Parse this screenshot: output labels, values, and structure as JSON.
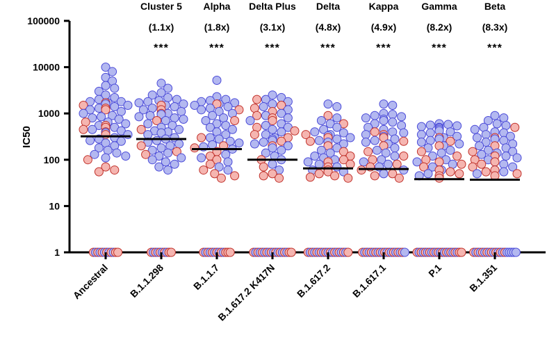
{
  "chart_data": {
    "type": "scatter",
    "subtype": "column-dot-plot",
    "yscale": "log",
    "ylim": [
      1,
      100000
    ],
    "ylabel": "IC50",
    "xlabel": "",
    "yticks": [
      1,
      10,
      100,
      1000,
      10000,
      100000
    ],
    "ytick_labels": [
      "1",
      "10",
      "100",
      "1000",
      "10000",
      "100000"
    ],
    "categories": [
      "Ancestral",
      "B.1.1.298",
      "B.1.1.7",
      "B.1.617.2 K417N",
      "B.1.617.2",
      "B.1.617.1",
      "P.1",
      "B.1.351"
    ],
    "variant_names": [
      "",
      "Cluster 5",
      "Alpha",
      "Delta Plus",
      "Delta",
      "Kappa",
      "Gamma",
      "Beta"
    ],
    "fold_changes": [
      "",
      "(1.1x)",
      "(1.8x)",
      "(3.1x)",
      "(4.8x)",
      "(4.9x)",
      "(8.2x)",
      "(8.3x)"
    ],
    "significance": [
      "",
      "***",
      "***",
      "***",
      "***",
      "***",
      "***",
      "***"
    ],
    "medians": [
      320,
      280,
      170,
      100,
      65,
      63,
      38,
      37
    ],
    "point_colors": {
      "blue": "#b3b8f0",
      "red": "#f5b5b0"
    },
    "point_stroke": {
      "blue": "#4a4ad8",
      "red": "#c0302a"
    },
    "series": [
      {
        "name": "Ancestral",
        "blue": [
          10000,
          8000,
          6000,
          5000,
          4000,
          3500,
          3000,
          2500,
          2200,
          2000,
          1800,
          1800,
          1700,
          1600,
          1500,
          1400,
          1300,
          1200,
          1100,
          1000,
          900,
          850,
          800,
          750,
          650,
          600,
          550,
          500,
          450,
          420,
          400,
          380,
          350,
          300,
          280,
          260,
          250,
          230,
          200,
          180,
          160,
          140,
          130,
          120,
          110
        ],
        "red": [
          1700,
          1500,
          1300,
          1200,
          650,
          550,
          500,
          450,
          400,
          350,
          100,
          70,
          60,
          55
        ],
        "blue_at_1": 5,
        "red_at_1": 7
      },
      {
        "name": "B.1.1.298",
        "blue": [
          4500,
          3500,
          2800,
          2500,
          2200,
          2000,
          1900,
          1800,
          1700,
          1600,
          1500,
          1400,
          1300,
          1200,
          1100,
          1000,
          950,
          900,
          850,
          800,
          750,
          700,
          600,
          550,
          500,
          450,
          420,
          400,
          380,
          350,
          300,
          280,
          260,
          240,
          220,
          200,
          180,
          160,
          140,
          120,
          110,
          100,
          90,
          80,
          70,
          60
        ],
        "red": [
          1500,
          1200,
          1000,
          700,
          450,
          200,
          150,
          130
        ],
        "blue_at_1": 4,
        "red_at_1": 6
      },
      {
        "name": "B.1.1.7",
        "blue": [
          5200,
          2300,
          2000,
          1900,
          1800,
          1700,
          1600,
          1500,
          1400,
          1300,
          1200,
          1100,
          1000,
          900,
          800,
          700,
          600,
          550,
          500,
          450,
          400,
          350,
          300,
          280,
          250,
          230,
          210,
          190,
          170,
          150,
          130,
          110,
          90,
          70,
          60
        ],
        "red": [
          1600,
          1200,
          700,
          300,
          200,
          180,
          150,
          120,
          100,
          80,
          60,
          50,
          45,
          40
        ],
        "blue_at_1": 5,
        "red_at_1": 8
      },
      {
        "name": "B.1.617.2 K417N",
        "blue": [
          2500,
          2200,
          2000,
          1800,
          1600,
          1400,
          1200,
          1000,
          900,
          800,
          700,
          600,
          550,
          500,
          450,
          400,
          350,
          300,
          280,
          260,
          240,
          220,
          200,
          180,
          160,
          140,
          120,
          100,
          80,
          60
        ],
        "red": [
          2000,
          1500,
          1300,
          1100,
          900,
          800,
          700,
          500,
          420,
          350,
          300,
          250,
          200,
          100,
          70,
          50,
          45,
          40
        ],
        "blue_at_1": 8,
        "red_at_1": 10
      },
      {
        "name": "B.1.617.2",
        "blue": [
          1600,
          1400,
          800,
          700,
          600,
          500,
          450,
          400,
          380,
          350,
          330,
          300,
          280,
          260,
          240,
          220,
          200,
          180,
          160,
          140,
          120,
          110,
          100,
          90,
          80,
          70,
          60,
          55
        ],
        "red": [
          900,
          600,
          350,
          300,
          250,
          200,
          150,
          120,
          100,
          90,
          80,
          70,
          60,
          55,
          50,
          45,
          42,
          40
        ],
        "blue_at_1": 9,
        "red_at_1": 10
      },
      {
        "name": "B.1.617.1",
        "blue": [
          1600,
          1500,
          1000,
          950,
          900,
          850,
          800,
          750,
          700,
          650,
          600,
          550,
          500,
          450,
          400,
          380,
          350,
          320,
          300,
          280,
          260,
          240,
          220,
          200,
          180,
          160,
          140,
          120,
          100,
          90,
          80,
          70,
          60,
          50
        ],
        "red": [
          400,
          350,
          300,
          250,
          200,
          150,
          120,
          100,
          80,
          70,
          60,
          50,
          45,
          40
        ],
        "blue_at_1": 10,
        "red_at_1": 10
      },
      {
        "name": "P.1",
        "blue": [
          600,
          580,
          560,
          540,
          520,
          500,
          480,
          450,
          420,
          400,
          380,
          350,
          320,
          300,
          280,
          260,
          240,
          220,
          200,
          180,
          160,
          140,
          120,
          100,
          90,
          80,
          70,
          60,
          50,
          45
        ],
        "red": [
          300,
          250,
          200,
          150,
          120,
          100,
          90,
          80,
          70,
          60,
          55,
          50,
          45,
          40
        ],
        "blue_at_1": 10,
        "red_at_1": 12
      },
      {
        "name": "B.1.351",
        "blue": [
          900,
          800,
          700,
          600,
          550,
          500,
          450,
          400,
          380,
          350,
          320,
          300,
          280,
          260,
          240,
          220,
          200,
          180,
          160,
          150,
          140,
          130,
          120,
          110,
          100,
          90,
          80,
          70,
          60,
          55,
          50
        ],
        "red": [
          500,
          300,
          200,
          150,
          120,
          100,
          90,
          80,
          70,
          60,
          55,
          50,
          45
        ],
        "blue_at_1": 12,
        "red_at_1": 8
      }
    ]
  }
}
